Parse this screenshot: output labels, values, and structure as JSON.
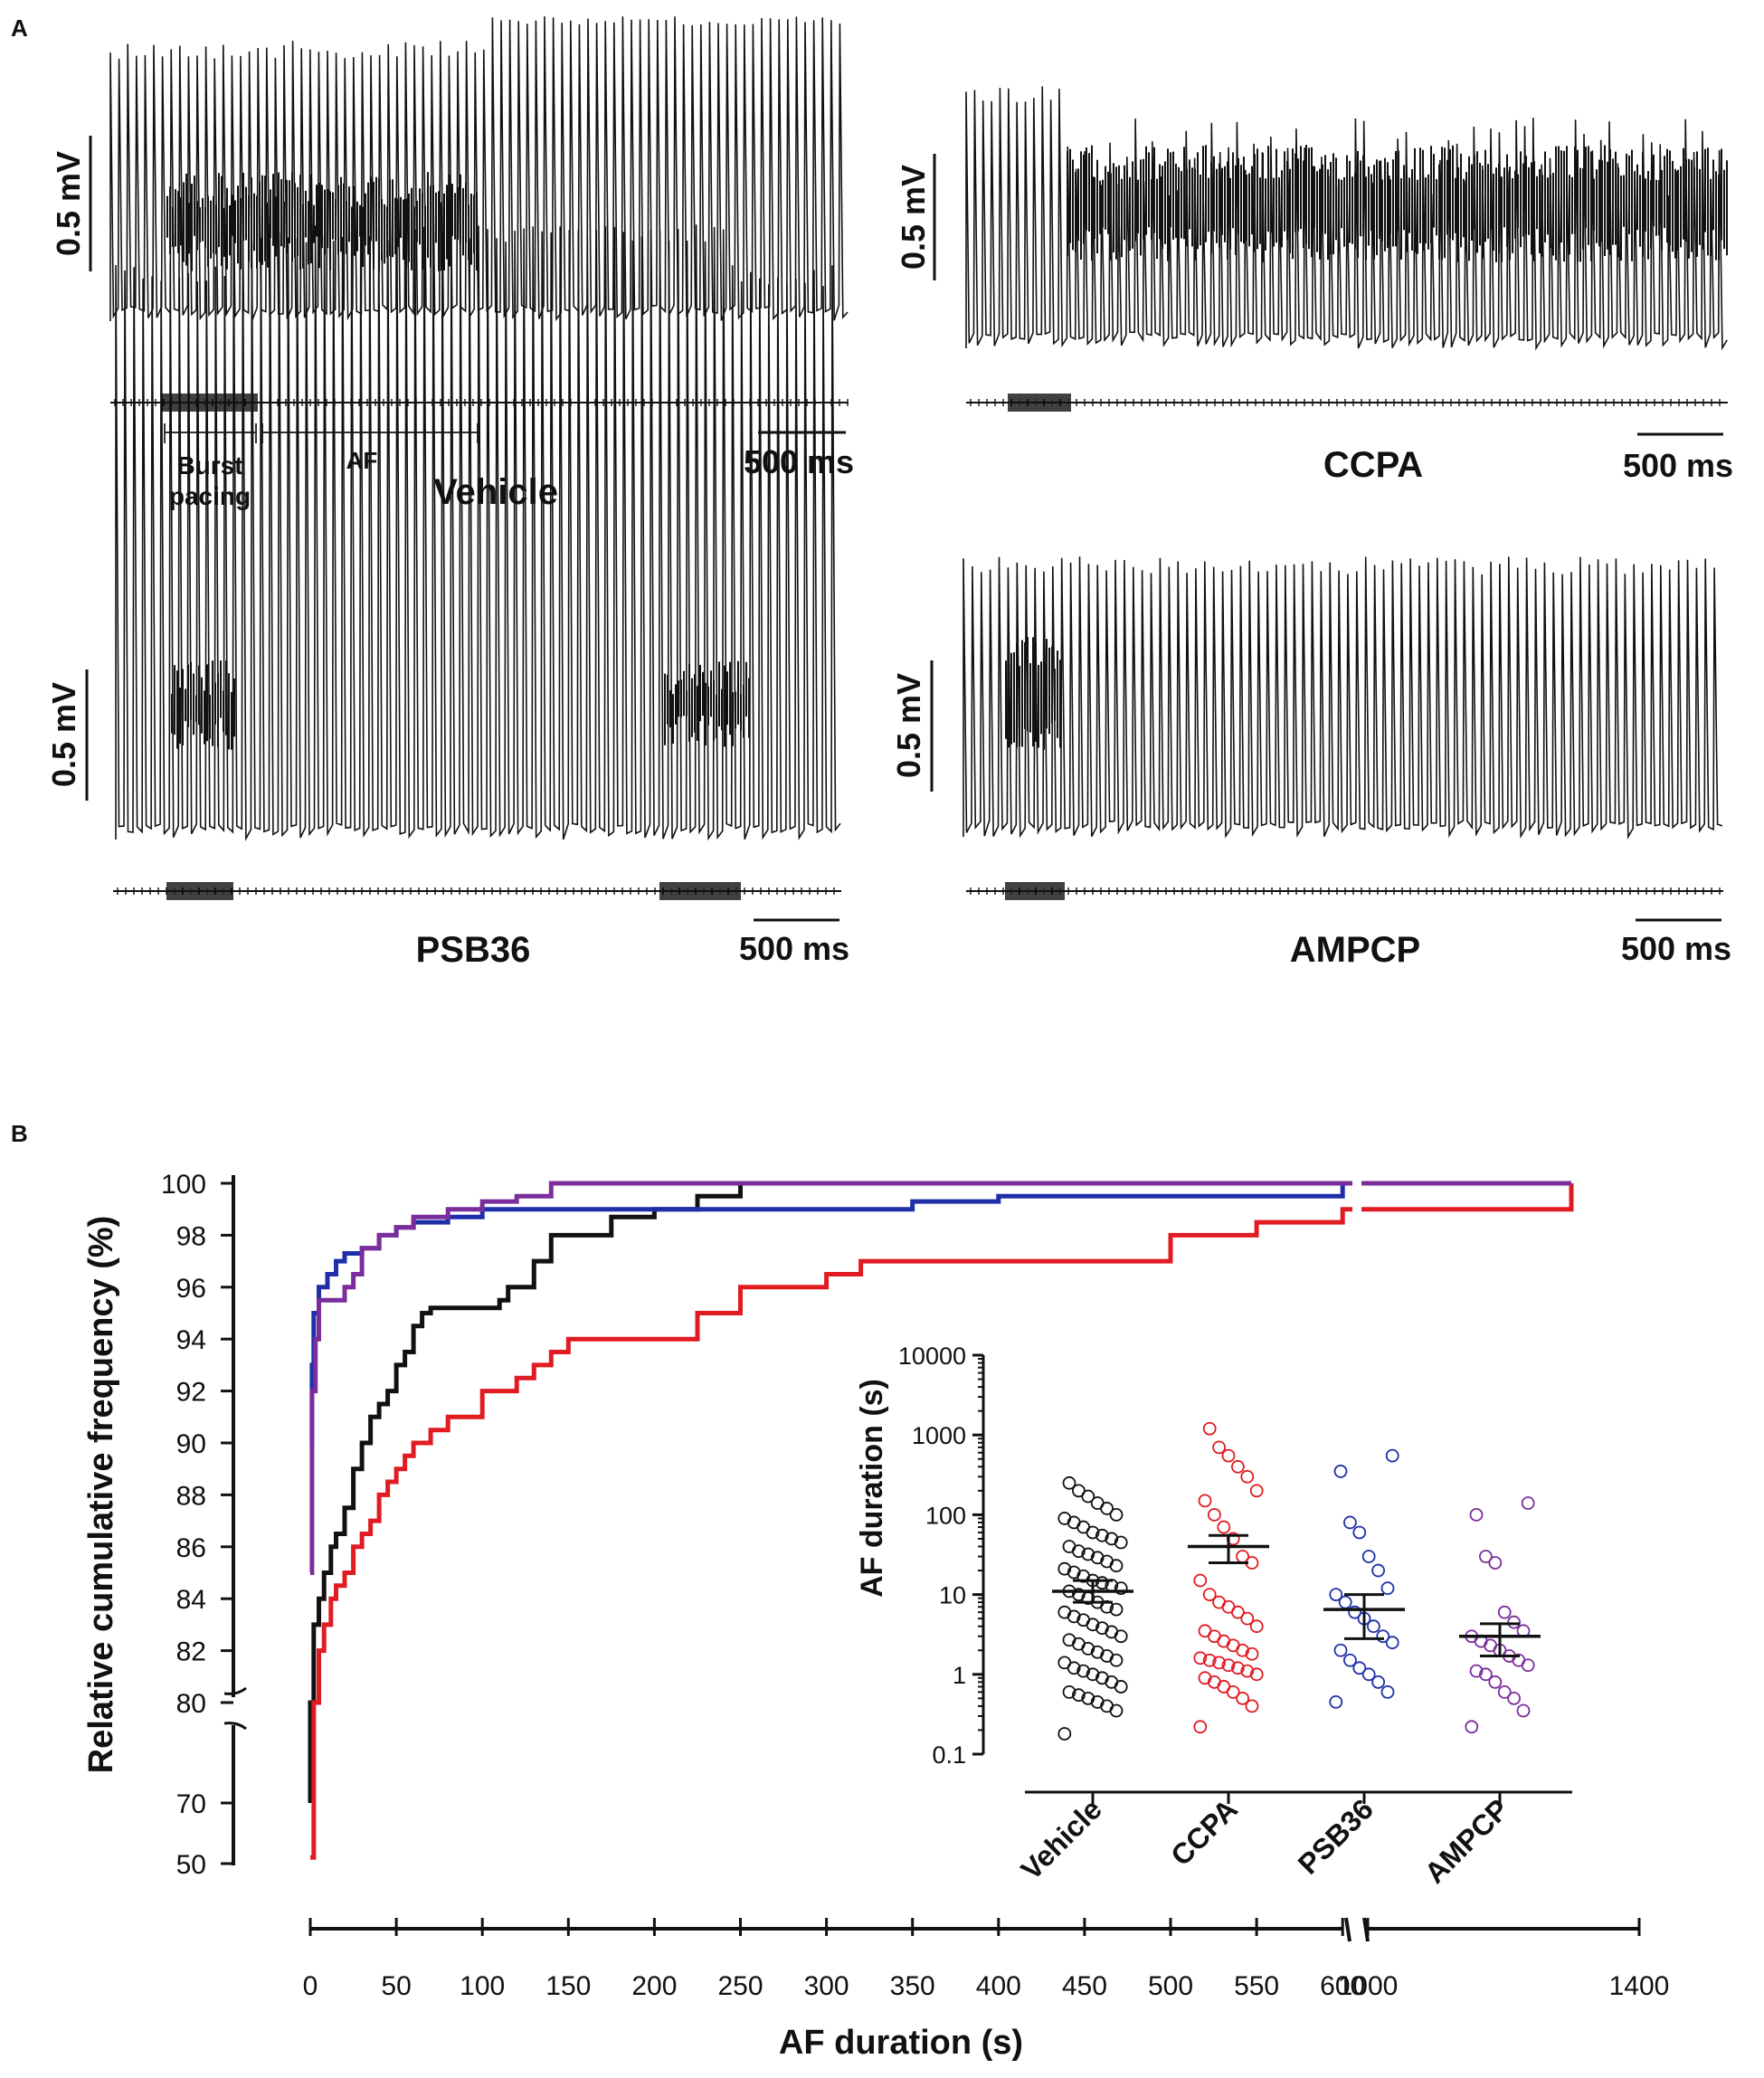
{
  "panel_a": {
    "label": "A",
    "scale_bar_voltage": "0.5 mV",
    "scale_bar_time": "500 ms",
    "traces": [
      {
        "name": "Vehicle",
        "segments": [
          {
            "label": "Burst pacing"
          },
          {
            "label": "AF"
          }
        ]
      },
      {
        "name": "CCPA"
      },
      {
        "name": "PSB36"
      },
      {
        "name": "AMPCP"
      }
    ]
  },
  "panel_b": {
    "label": "B"
  },
  "colors": {
    "Vehicle": "#111111",
    "CCPA": "#e11b22",
    "PSB36": "#1f2fa8",
    "AMPCP": "#7b2d9b"
  },
  "chart_data": [
    {
      "type": "line",
      "title": "",
      "xlabel": "AF duration (s)",
      "ylabel": "Relative cumulative frequency (%)",
      "xlim": [
        0,
        1400
      ],
      "x_axis_break": [
        600,
        800
      ],
      "x_ticks": [
        0,
        50,
        100,
        150,
        200,
        250,
        300,
        350,
        400,
        450,
        500,
        550,
        600,
        1000,
        1400
      ],
      "ylim": [
        50,
        100
      ],
      "y_axis_break": [
        70,
        80
      ],
      "y_ticks": [
        50,
        70,
        80,
        82,
        84,
        86,
        88,
        90,
        92,
        94,
        96,
        98,
        100
      ],
      "series": [
        {
          "name": "Vehicle",
          "x": [
            0,
            0,
            2,
            5,
            8,
            12,
            15,
            20,
            25,
            30,
            35,
            40,
            45,
            50,
            55,
            60,
            65,
            70,
            80,
            100,
            110,
            115,
            120,
            130,
            140,
            150,
            175,
            200,
            225,
            250,
            300,
            1300
          ],
          "y": [
            70,
            80,
            83,
            84,
            85,
            86,
            86.5,
            87.5,
            89,
            90,
            91,
            91.5,
            92,
            93,
            93.5,
            94.5,
            95,
            95.2,
            95.2,
            95.2,
            95.5,
            96,
            96,
            97,
            98,
            98,
            98.7,
            99,
            99.5,
            100,
            100,
            100
          ]
        },
        {
          "name": "CCPA",
          "x": [
            0,
            2,
            5,
            8,
            12,
            15,
            20,
            25,
            30,
            35,
            40,
            45,
            50,
            55,
            60,
            70,
            80,
            90,
            100,
            110,
            120,
            130,
            140,
            150,
            175,
            200,
            225,
            250,
            275,
            300,
            320,
            350,
            400,
            450,
            500,
            550,
            600,
            1000,
            1300
          ],
          "y": [
            52,
            80,
            82,
            83,
            84,
            84.5,
            85,
            86,
            86.5,
            87,
            88,
            88.5,
            89,
            89.5,
            90,
            90.5,
            91,
            91,
            92,
            92,
            92.5,
            93,
            93.5,
            94,
            94,
            94,
            95,
            96,
            96,
            96.5,
            97,
            97,
            97,
            97,
            98,
            98.5,
            99,
            99,
            100
          ]
        },
        {
          "name": "PSB36",
          "x": [
            0,
            1,
            2,
            5,
            10,
            15,
            20,
            30,
            40,
            50,
            60,
            80,
            100,
            125,
            150,
            200,
            250,
            300,
            350,
            400,
            450,
            500,
            540,
            600,
            1000,
            1300
          ],
          "y": [
            90,
            93,
            95,
            96,
            96.5,
            97,
            97.3,
            97.5,
            98,
            98.3,
            98.5,
            98.7,
            99,
            99,
            99,
            99,
            99,
            99,
            99.3,
            99.5,
            99.5,
            99.5,
            99.5,
            100,
            100,
            100
          ]
        },
        {
          "name": "AMPCP",
          "x": [
            0,
            1,
            3,
            5,
            10,
            20,
            25,
            30,
            40,
            50,
            60,
            80,
            100,
            120,
            140,
            160,
            200,
            250,
            1300
          ],
          "y": [
            85,
            92,
            94,
            95.5,
            95.5,
            96,
            96.5,
            97.5,
            98,
            98.3,
            98.7,
            99,
            99.3,
            99.5,
            100,
            100,
            100,
            100,
            100
          ]
        }
      ]
    },
    {
      "type": "scatter",
      "title": "",
      "ylabel": "AF duration (s)",
      "y_scale": "log",
      "ylim": [
        0.1,
        10000
      ],
      "y_ticks": [
        0.1,
        1,
        10,
        100,
        1000,
        10000
      ],
      "y_tick_labels": [
        "0.1",
        "1",
        "10",
        "100",
        "1000",
        "10000"
      ],
      "categories": [
        "Vehicle",
        "CCPA",
        "PSB36",
        "AMPCP"
      ],
      "summary": [
        {
          "name": "Vehicle",
          "mean": 11,
          "sem_low": 8,
          "sem_high": 15
        },
        {
          "name": "CCPA",
          "mean": 40,
          "sem_low": 25,
          "sem_high": 55
        },
        {
          "name": "PSB36",
          "mean": 6.5,
          "sem_low": 2.8,
          "sem_high": 10
        },
        {
          "name": "AMPCP",
          "mean": 3,
          "sem_low": 1.7,
          "sem_high": 4.3
        }
      ],
      "series": [
        {
          "name": "Vehicle",
          "values": [
            0.18,
            0.35,
            0.4,
            0.45,
            0.5,
            0.55,
            0.6,
            0.7,
            0.8,
            0.9,
            1.0,
            1.1,
            1.2,
            1.4,
            1.5,
            1.7,
            1.9,
            2.1,
            2.4,
            2.7,
            3.0,
            3.4,
            3.8,
            4.2,
            4.8,
            5.3,
            6,
            6.5,
            7,
            8,
            9,
            10,
            11,
            12,
            13,
            14,
            15,
            17,
            19,
            21,
            23,
            26,
            29,
            32,
            35,
            40,
            45,
            50,
            55,
            60,
            70,
            80,
            90,
            100,
            120,
            140,
            170,
            200,
            250
          ]
        },
        {
          "name": "CCPA",
          "values": [
            0.22,
            0.4,
            0.5,
            0.6,
            0.7,
            0.8,
            0.9,
            1.0,
            1.1,
            1.2,
            1.3,
            1.4,
            1.5,
            1.6,
            1.8,
            2.0,
            2.3,
            2.6,
            3.0,
            3.5,
            4.0,
            5,
            6,
            7,
            8,
            10,
            15,
            25,
            30,
            50,
            70,
            100,
            150,
            200,
            300,
            400,
            550,
            700,
            1200
          ]
        },
        {
          "name": "PSB36",
          "values": [
            0.45,
            0.6,
            0.8,
            1.0,
            1.2,
            1.5,
            2.0,
            2.5,
            3.0,
            4.0,
            5,
            6,
            8,
            10,
            12,
            20,
            30,
            60,
            80,
            350,
            550
          ]
        },
        {
          "name": "AMPCP",
          "values": [
            0.22,
            0.35,
            0.5,
            0.6,
            0.8,
            1.0,
            1.1,
            1.3,
            1.5,
            1.7,
            2.0,
            2.3,
            2.6,
            3.0,
            3.5,
            4.5,
            6,
            25,
            30,
            100,
            140
          ]
        }
      ]
    }
  ]
}
